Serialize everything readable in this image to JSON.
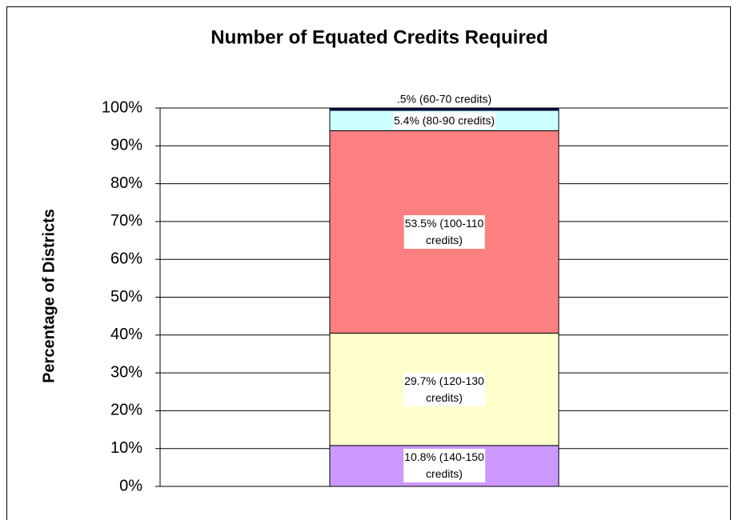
{
  "chart_data": {
    "type": "stacked_bar",
    "title": "Number of Equated Credits Required",
    "y_label": "Percentage of Districts",
    "categories": [
      null
    ],
    "series": [
      {
        "color": "#cc99ff",
        "values": [
          10.8
        ],
        "value_labels": [
          "10.8% (140-150\ncredits)"
        ]
      },
      {
        "color": "#ffffcc",
        "values": [
          29.7
        ],
        "value_labels": [
          "29.7% (120-130\ncredits)"
        ]
      },
      {
        "color": "#ff8080",
        "values": [
          53.5
        ],
        "value_labels": [
          "53.5% (100-110\ncredits)"
        ]
      },
      {
        "color": "#ccffff",
        "values": [
          5.4
        ],
        "value_labels": [
          "5.4% (80-90 credits)"
        ]
      },
      {
        "color": "#000080",
        "values": [
          0.5
        ],
        "value_labels": [
          ".5% (60-70 credits)"
        ]
      }
    ],
    "ylim": [
      0,
      100
    ],
    "yticks": [
      {
        "value": 0,
        "label": "0%"
      },
      {
        "value": 10,
        "label": "10%"
      },
      {
        "value": 20,
        "label": "20%"
      },
      {
        "value": 30,
        "label": "30%"
      },
      {
        "value": 40,
        "label": "40%"
      },
      {
        "value": 50,
        "label": "50%"
      },
      {
        "value": 60,
        "label": "60%"
      },
      {
        "value": 70,
        "label": "70%"
      },
      {
        "value": 80,
        "label": "80%"
      },
      {
        "value": 90,
        "label": "90%"
      },
      {
        "value": 100,
        "label": "100%"
      }
    ],
    "grid": true
  }
}
